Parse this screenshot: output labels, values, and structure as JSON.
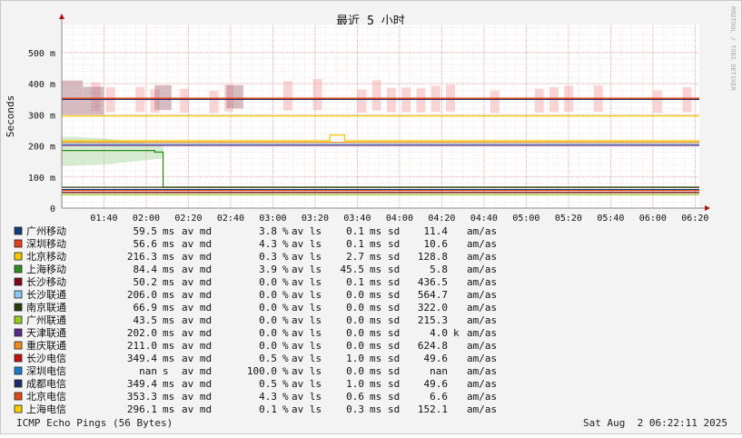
{
  "chart_data": {
    "type": "line",
    "title": "最近 5 小时",
    "ylabel": "Seconds",
    "watermark": "RRDTOOL / TOBI OETIKER",
    "footer_left": "ICMP Echo Pings (56 Bytes)",
    "footer_right": "Sat Aug  2 06:22:11 2025",
    "grid": true,
    "y_unit": "ms",
    "ylim": [
      0,
      590
    ],
    "y_ticks": [
      {
        "value": 0,
        "label": "0"
      },
      {
        "value": 100,
        "label": "100 m"
      },
      {
        "value": 200,
        "label": "200 m"
      },
      {
        "value": 300,
        "label": "300 m"
      },
      {
        "value": 400,
        "label": "400 m"
      },
      {
        "value": 500,
        "label": "500 m"
      }
    ],
    "xlim": [
      "01:20",
      "06:22"
    ],
    "x_ticks": [
      "01:40",
      "02:00",
      "02:20",
      "02:40",
      "03:00",
      "03:20",
      "03:40",
      "04:00",
      "04:20",
      "04:40",
      "05:00",
      "05:20",
      "05:40",
      "06:00",
      "06:20"
    ],
    "series": [
      {
        "name": "广州移动",
        "color": "#0b3d7a",
        "values_ms": [
          [
            0,
            59.5
          ],
          [
            302,
            59.5
          ]
        ],
        "stats": {
          "avg": "59.5",
          "avg_unit": "ms",
          "loss": "3.8",
          "loss_unit": "%",
          "sd": "0.1",
          "sd_unit": "ms",
          "am": "11.4",
          "am_unit": ""
        }
      },
      {
        "name": "深圳移动",
        "color": "#e0441c",
        "values_ms": [
          [
            0,
            56.6
          ],
          [
            302,
            56.6
          ]
        ],
        "stats": {
          "avg": "56.6",
          "avg_unit": "ms",
          "loss": "4.3",
          "loss_unit": "%",
          "sd": "0.1",
          "sd_unit": "ms",
          "am": "10.6",
          "am_unit": ""
        }
      },
      {
        "name": "北京移动",
        "color": "#f5c800",
        "values_ms": [
          [
            0,
            216
          ],
          [
            125,
            216
          ],
          [
            127,
            235
          ],
          [
            132,
            235
          ],
          [
            134,
            216
          ],
          [
            302,
            216.3
          ]
        ],
        "stats": {
          "avg": "216.3",
          "avg_unit": "ms",
          "loss": "0.3",
          "loss_unit": "%",
          "sd": "2.7",
          "sd_unit": "ms",
          "am": "128.8",
          "am_unit": ""
        }
      },
      {
        "name": "上海移动",
        "color": "#2e8b20",
        "values_ms": [
          [
            0,
            185
          ],
          [
            42,
            185
          ],
          [
            44,
            180
          ],
          [
            46,
            180
          ],
          [
            48,
            67
          ],
          [
            302,
            67
          ]
        ],
        "stats": {
          "avg": "84.4",
          "avg_unit": "ms",
          "loss": "3.9",
          "loss_unit": "%",
          "sd": "45.5",
          "sd_unit": "ms",
          "am": "5.8",
          "am_unit": ""
        }
      },
      {
        "name": "长沙移动",
        "color": "#7a0c1a",
        "values_ms": [
          [
            0,
            50.2
          ],
          [
            302,
            50.2
          ]
        ],
        "stats": {
          "avg": "50.2",
          "avg_unit": "ms",
          "loss": "0.0",
          "loss_unit": "%",
          "sd": "0.1",
          "sd_unit": "ms",
          "am": "436.5",
          "am_unit": ""
        }
      },
      {
        "name": "长沙联通",
        "color": "#8ac8f0",
        "values_ms": [
          [
            0,
            206
          ],
          [
            302,
            206
          ]
        ],
        "stats": {
          "avg": "206.0",
          "avg_unit": "ms",
          "loss": "0.0",
          "loss_unit": "%",
          "sd": "0.0",
          "sd_unit": "ms",
          "am": "564.7",
          "am_unit": ""
        }
      },
      {
        "name": "南京联通",
        "color": "#2b3b10",
        "values_ms": [
          [
            0,
            66.9
          ],
          [
            302,
            66.9
          ]
        ],
        "stats": {
          "avg": "66.9",
          "avg_unit": "ms",
          "loss": "0.0",
          "loss_unit": "%",
          "sd": "0.0",
          "sd_unit": "ms",
          "am": "322.0",
          "am_unit": ""
        }
      },
      {
        "name": "广州联通",
        "color": "#9ac820",
        "values_ms": [
          [
            0,
            43.5
          ],
          [
            302,
            43.5
          ]
        ],
        "stats": {
          "avg": "43.5",
          "avg_unit": "ms",
          "loss": "0.0",
          "loss_unit": "%",
          "sd": "0.0",
          "sd_unit": "ms",
          "am": "215.3",
          "am_unit": ""
        }
      },
      {
        "name": "天津联通",
        "color": "#5a2a8a",
        "values_ms": [
          [
            0,
            202
          ],
          [
            302,
            202
          ]
        ],
        "stats": {
          "avg": "202.0",
          "avg_unit": "ms",
          "loss": "0.0",
          "loss_unit": "%",
          "sd": "0.0",
          "sd_unit": "ms",
          "am": "4.0",
          "am_unit": "k"
        }
      },
      {
        "name": "重庆联通",
        "color": "#f08a20",
        "values_ms": [
          [
            0,
            211
          ],
          [
            302,
            211
          ]
        ],
        "stats": {
          "avg": "211.0",
          "avg_unit": "ms",
          "loss": "0.0",
          "loss_unit": "%",
          "sd": "0.0",
          "sd_unit": "ms",
          "am": "624.8",
          "am_unit": ""
        }
      },
      {
        "name": "长沙电信",
        "color": "#c01010",
        "values_ms": [
          [
            0,
            349.4
          ],
          [
            302,
            349.4
          ]
        ],
        "stats": {
          "avg": "349.4",
          "avg_unit": "ms",
          "loss": "0.5",
          "loss_unit": "%",
          "sd": "1.0",
          "sd_unit": "ms",
          "am": "49.6",
          "am_unit": ""
        }
      },
      {
        "name": "深圳电信",
        "color": "#1a7ac8",
        "values_ms": [],
        "stats": {
          "avg": "nan",
          "avg_unit": "s",
          "loss": "100.0",
          "loss_unit": "%",
          "sd": "0.0",
          "sd_unit": "ms",
          "am": "nan",
          "am_unit": ""
        }
      },
      {
        "name": "成都电信",
        "color": "#1e2a6a",
        "values_ms": [
          [
            0,
            349.4
          ],
          [
            302,
            349.4
          ]
        ],
        "stats": {
          "avg": "349.4",
          "avg_unit": "ms",
          "loss": "0.5",
          "loss_unit": "%",
          "sd": "1.0",
          "sd_unit": "ms",
          "am": "49.6",
          "am_unit": ""
        }
      },
      {
        "name": "北京电信",
        "color": "#e04a1a",
        "values_ms": [
          [
            0,
            353.3
          ],
          [
            302,
            353.3
          ]
        ],
        "stats": {
          "avg": "353.3",
          "avg_unit": "ms",
          "loss": "4.3",
          "loss_unit": "%",
          "sd": "0.6",
          "sd_unit": "ms",
          "am": "6.6",
          "am_unit": ""
        }
      },
      {
        "name": "上海电信",
        "color": "#f5d000",
        "values_ms": [
          [
            0,
            296.1
          ],
          [
            302,
            296.1
          ]
        ],
        "stats": {
          "avg": "296.1",
          "avg_unit": "ms",
          "loss": "0.1",
          "loss_unit": "%",
          "sd": "0.3",
          "sd_unit": "ms",
          "am": "152.1",
          "am_unit": ""
        }
      }
    ],
    "legend_labels": {
      "avg": "av md",
      "loss": "av ls",
      "sd": "sd",
      "am": "am/as"
    }
  },
  "colors": {
    "background": "#f3f3f3",
    "plot_background": "#ffffff",
    "grid_minor": "#f0c8c8",
    "grid_major": "#e8a0a0",
    "axis": "#888888",
    "arrow": "#b01010"
  }
}
